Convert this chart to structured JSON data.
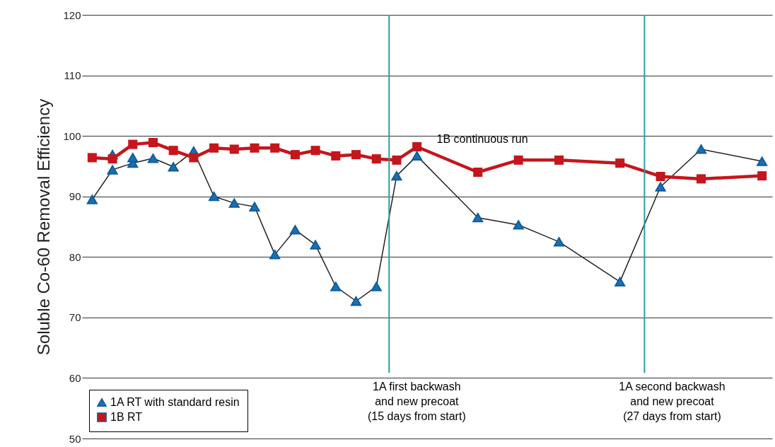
{
  "chart_data": {
    "type": "line",
    "ylabel": "Soluble Co-60 Removal Efficiency",
    "categories": [
      null,
      null,
      null,
      null,
      null,
      null,
      null,
      null,
      null,
      null,
      null,
      null,
      null,
      null,
      null,
      null,
      null,
      null,
      null,
      null,
      null,
      null,
      null,
      null,
      null,
      null,
      null,
      null,
      null,
      null,
      null,
      null,
      null,
      null
    ],
    "ylim": [
      50,
      120
    ],
    "yticks": [
      50,
      60,
      70,
      80,
      90,
      100,
      110,
      120
    ],
    "tick_labels": "y",
    "grid": "y",
    "legend": "bottom left",
    "series": [
      {
        "name": "1A RT with standard resin",
        "color": "#1f6fae",
        "marker": "triangle",
        "values": [
          89.5,
          94.4,
          95.5,
          96.3,
          94.9,
          97.5,
          90.0,
          88.9,
          88.3,
          80.4,
          84.5,
          82.0,
          75.1,
          72.7,
          75.1,
          93.4,
          96.7,
          null,
          null,
          86.5,
          null,
          85.3,
          null,
          82.5,
          null,
          null,
          75.9,
          null,
          91.6,
          null,
          97.8,
          null,
          null,
          95.8
        ]
      },
      {
        "type": "scatter",
        "color": "#1f6fae",
        "marker": "triangle",
        "values": [
          null,
          96.9,
          96.4,
          null,
          null,
          null,
          null,
          null,
          null,
          null,
          null,
          null,
          null,
          null,
          null,
          null,
          null,
          null,
          null,
          null,
          null,
          null,
          null,
          null,
          null,
          null,
          null,
          null,
          null,
          null,
          null,
          null,
          null,
          null
        ]
      },
      {
        "name": "1B RT",
        "color": "#c4161c",
        "marker": "square",
        "values": [
          96.4,
          96.2,
          98.6,
          98.9,
          97.6,
          96.4,
          98.0,
          97.8,
          98.0,
          98.0,
          96.9,
          97.6,
          96.7,
          96.9,
          96.2,
          96.0,
          98.2,
          null,
          null,
          94.0,
          null,
          96.0,
          null,
          96.0,
          null,
          null,
          95.5,
          null,
          93.3,
          null,
          92.9,
          null,
          null,
          93.4
        ]
      }
    ],
    "annotations": [
      "1B continuous run",
      "1A first backwash\nand new precoat\n(15 days from start)",
      "1A second  backwash\nand new precoat\n(27 days from start)"
    ]
  }
}
